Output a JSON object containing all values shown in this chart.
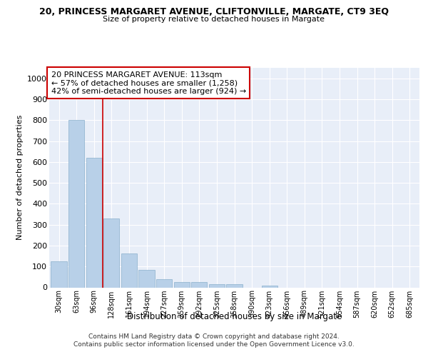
{
  "title1": "20, PRINCESS MARGARET AVENUE, CLIFTONVILLE, MARGATE, CT9 3EQ",
  "title2": "Size of property relative to detached houses in Margate",
  "xlabel": "Distribution of detached houses by size in Margate",
  "ylabel": "Number of detached properties",
  "categories": [
    "30sqm",
    "63sqm",
    "96sqm",
    "128sqm",
    "161sqm",
    "194sqm",
    "227sqm",
    "259sqm",
    "292sqm",
    "325sqm",
    "358sqm",
    "390sqm",
    "423sqm",
    "456sqm",
    "489sqm",
    "521sqm",
    "554sqm",
    "587sqm",
    "620sqm",
    "652sqm",
    "685sqm"
  ],
  "values": [
    125,
    800,
    620,
    328,
    162,
    82,
    40,
    27,
    24,
    17,
    16,
    0,
    10,
    0,
    0,
    0,
    0,
    0,
    0,
    0,
    0
  ],
  "bar_color": "#b8d0e8",
  "bar_edge_color": "#8ab0cc",
  "vline_x": 2.5,
  "vline_color": "#cc0000",
  "annotation_text": "20 PRINCESS MARGARET AVENUE: 113sqm\n← 57% of detached houses are smaller (1,258)\n42% of semi-detached houses are larger (924) →",
  "annotation_box_color": "#ffffff",
  "annotation_box_edge": "#cc0000",
  "ylim": [
    0,
    1050
  ],
  "yticks": [
    0,
    100,
    200,
    300,
    400,
    500,
    600,
    700,
    800,
    900,
    1000
  ],
  "footer": "Contains HM Land Registry data © Crown copyright and database right 2024.\nContains public sector information licensed under the Open Government Licence v3.0.",
  "fig_bg_color": "#ffffff",
  "plot_bg_color": "#e8eef8"
}
